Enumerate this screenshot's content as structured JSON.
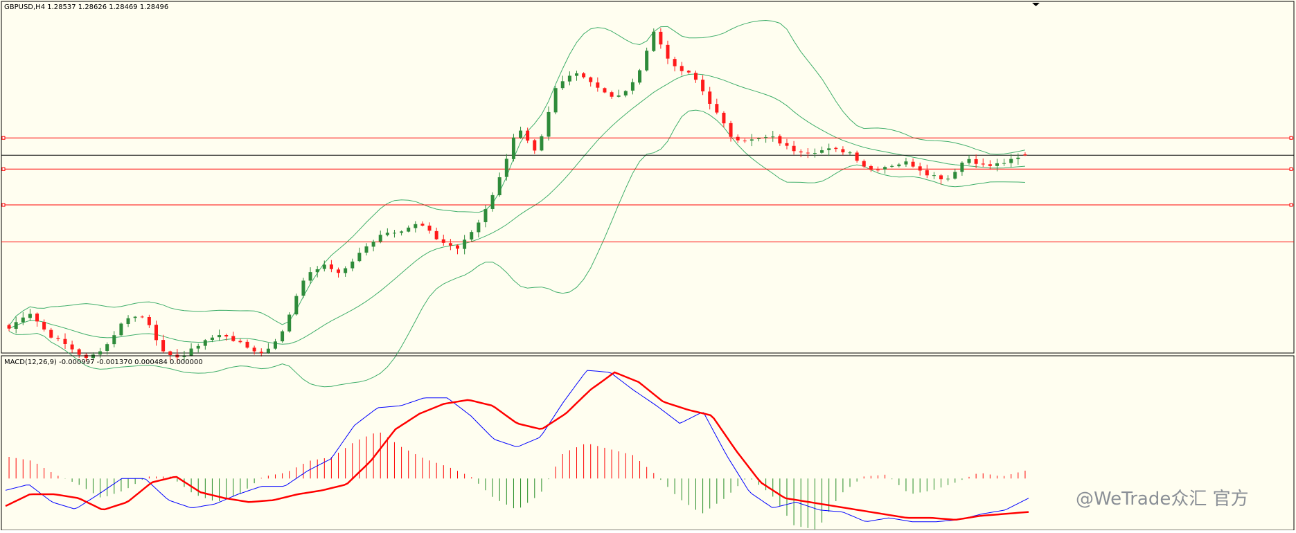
{
  "header": {
    "price_label": "GBPUSD,H4  1.28537 1.28626 1.28469 1.28496",
    "macd_label": "MACD(12,26,9) -0.000997 -0.001370 0.000484 0.000000"
  },
  "watermark": {
    "text": "@WeTrade众汇 官方"
  },
  "colors": {
    "background": "#fffef0",
    "bull_candle": "#2e8b3a",
    "bear_candle": "#ff1a1a",
    "bollinger": "#3fae6a",
    "level_line": "#ff0000",
    "current_price_line": "#000000",
    "macd_line": "#0000ff",
    "signal_line": "#ff0000",
    "hist_positive": "#ff0000",
    "hist_negative": "#228b22"
  },
  "chart_data": [
    {
      "type": "candlestick",
      "symbol": "GBPUSD",
      "timeframe": "H4",
      "ylim": [
        1.2,
        1.348
      ],
      "last_bar": {
        "open": 1.28537,
        "high": 1.28626,
        "low": 1.28469,
        "close": 1.28496
      },
      "current_price": 1.285,
      "horizontal_levels": [
        1.2925,
        1.279,
        1.2635,
        1.2475
      ],
      "bollinger": {
        "period": 20,
        "deviation": 2,
        "shown": true
      },
      "close_path": [
        1.21,
        1.2175,
        1.2075,
        1.2025,
        1.1965,
        1.203,
        1.215,
        1.215,
        1.1975,
        1.1985,
        1.205,
        1.2075,
        1.2025,
        1.199,
        1.2085,
        1.231,
        1.2375,
        1.234,
        1.243,
        1.251,
        1.2525,
        1.2555,
        1.248,
        1.2445,
        1.2555,
        1.2725,
        1.2975,
        1.285,
        1.3145,
        1.3215,
        1.3155,
        1.309,
        1.3165,
        1.3385,
        1.323,
        1.3195,
        1.306,
        1.2925,
        1.2915,
        1.293,
        1.2875,
        1.2865,
        1.2875,
        1.2865,
        1.2785,
        1.2805,
        1.282,
        1.277,
        1.2745,
        1.284,
        1.28,
        1.282,
        1.2845
      ],
      "bars": 146
    },
    {
      "type": "macd",
      "params": [
        12,
        26,
        9
      ],
      "macd": -0.000997,
      "signal": -0.00137,
      "histogram": 0.000484,
      "zero": 0.0,
      "ylim": [
        -0.0128,
        0.0305
      ],
      "macd_path": [
        -0.003,
        -0.0015,
        -0.006,
        -0.0078,
        -0.004,
        0.0,
        0.0,
        -0.0055,
        -0.0075,
        -0.0065,
        -0.004,
        -0.002,
        -0.002,
        0.002,
        0.005,
        0.0135,
        0.018,
        0.0185,
        0.0205,
        0.0205,
        0.016,
        0.01,
        0.008,
        0.0105,
        0.0195,
        0.0275,
        0.027,
        0.0225,
        0.0185,
        0.014,
        0.017,
        0.006,
        -0.0035,
        -0.0075,
        -0.006,
        -0.008,
        -0.0085,
        -0.011,
        -0.01,
        -0.011,
        -0.011,
        -0.0105,
        -0.009,
        -0.008,
        -0.005
      ],
      "signal_path": [
        -0.007,
        -0.004,
        -0.004,
        -0.005,
        -0.008,
        -0.006,
        -0.001,
        0.0005,
        -0.0035,
        -0.005,
        -0.006,
        -0.0055,
        -0.004,
        -0.003,
        -0.0015,
        0.0045,
        0.0125,
        0.0165,
        0.019,
        0.02,
        0.0185,
        0.014,
        0.0125,
        0.0165,
        0.0225,
        0.027,
        0.0245,
        0.0195,
        0.0175,
        0.016,
        0.007,
        -0.001,
        -0.005,
        -0.006,
        -0.007,
        -0.008,
        -0.009,
        -0.01,
        -0.01,
        -0.0105,
        -0.0095,
        -0.009,
        -0.0085
      ],
      "histogram_path": [
        0.0055,
        0.0045,
        0.001,
        -0.0015,
        -0.005,
        -0.003,
        0.0005,
        0.0005,
        -0.004,
        -0.006,
        -0.004,
        0.0005,
        0.0015,
        0.0045,
        0.0055,
        0.0095,
        0.012,
        0.008,
        0.005,
        0.003,
        0.0005,
        -0.005,
        -0.008,
        -0.004,
        0.0065,
        0.009,
        0.0075,
        0.006,
        0.001,
        -0.005,
        -0.009,
        -0.005,
        0.0005,
        -0.004,
        -0.012,
        -0.013,
        -0.004,
        0.0005,
        0.001,
        -0.004,
        -0.003,
        -0.001,
        0.0015,
        0.0005,
        0.002
      ]
    }
  ]
}
